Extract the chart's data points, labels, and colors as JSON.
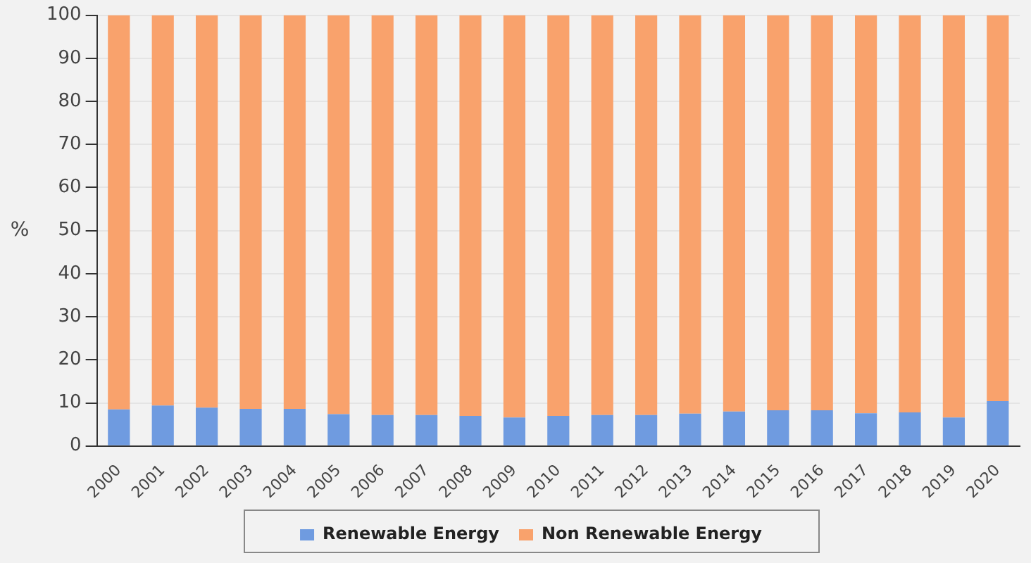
{
  "chart_data": {
    "type": "bar",
    "stacked": true,
    "ylabel": "%",
    "categories": [
      "2000",
      "2001",
      "2002",
      "2003",
      "2004",
      "2005",
      "2006",
      "2007",
      "2008",
      "2009",
      "2010",
      "2011",
      "2012",
      "2013",
      "2014",
      "2015",
      "2016",
      "2017",
      "2018",
      "2019",
      "2020"
    ],
    "series": [
      {
        "name": "Renewable Energy",
        "color": "#6f9be0",
        "values": [
          8.5,
          9.4,
          8.9,
          8.6,
          8.6,
          7.4,
          7.2,
          7.2,
          7.0,
          6.6,
          7.0,
          7.2,
          7.2,
          7.5,
          8.0,
          8.3,
          8.3,
          7.6,
          7.8,
          6.6,
          10.4
        ]
      },
      {
        "name": "Non Renewable Energy",
        "color": "#f9a26c",
        "values": [
          91.5,
          90.6,
          91.1,
          91.4,
          91.4,
          92.6,
          92.8,
          92.8,
          93.0,
          93.4,
          93.0,
          92.8,
          92.8,
          92.5,
          92.0,
          91.7,
          91.7,
          92.4,
          92.2,
          93.4,
          89.6
        ]
      }
    ],
    "ylim": [
      0,
      100
    ],
    "yticks": [
      0,
      10,
      20,
      30,
      40,
      50,
      60,
      70,
      80,
      90,
      100
    ],
    "grid": "y",
    "legend": "bottom"
  }
}
